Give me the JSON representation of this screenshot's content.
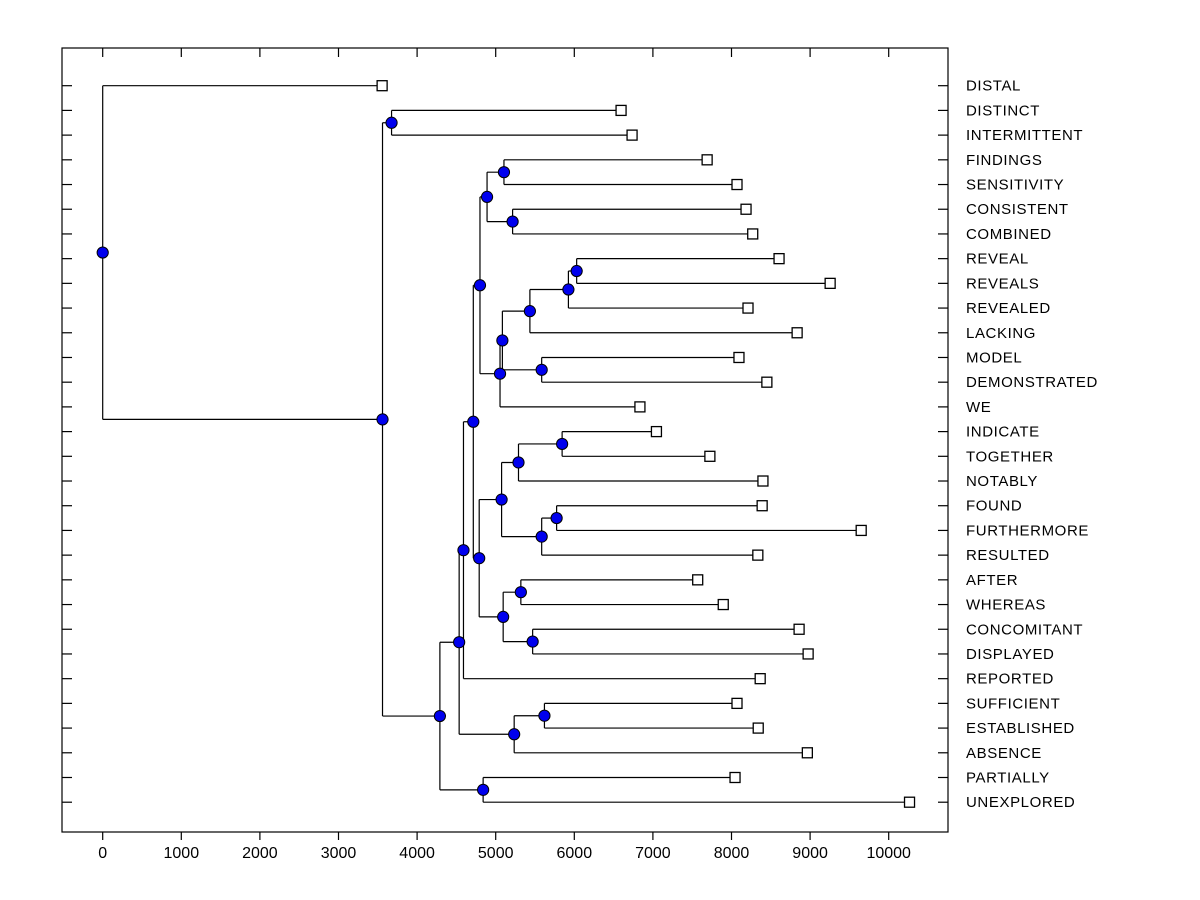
{
  "figure": {
    "background": "#ffffff",
    "plot_background": "#ffffff",
    "border_color": "#000000"
  },
  "chart_data": {
    "type": "dendrogram",
    "subtype": "phylogenetic-tree",
    "orientation": "horizontal-root-left",
    "title": "",
    "xlabel": "",
    "ylabel": "",
    "xlim": [
      -500,
      10750
    ],
    "grid": false,
    "legend": null,
    "x_ticks": [
      0,
      1000,
      2000,
      3000,
      4000,
      5000,
      6000,
      7000,
      8000,
      9000,
      10000
    ],
    "x_tick_labels": [
      "0",
      "1000",
      "2000",
      "3000",
      "4000",
      "5000",
      "6000",
      "7000",
      "8000",
      "9000",
      "10000"
    ],
    "leaf_labels": [
      "DISTAL",
      "DISTINCT",
      "INTERMITTENT",
      "FINDINGS",
      "SENSITIVITY",
      "CONSISTENT",
      "COMBINED",
      "REVEAL",
      "REVEALS",
      "REVEALED",
      "LACKING",
      "MODEL",
      "DEMONSTRATED",
      "WE",
      "INDICATE",
      "TOGETHER",
      "NOTABLY",
      "FOUND",
      "FURTHERMORE",
      "RESULTED",
      "AFTER",
      "WHEREAS",
      "CONCOMITANT",
      "DISPLAYED",
      "REPORTED",
      "SUFFICIENT",
      "ESTABLISHED",
      "ABSENCE",
      "PARTIALLY",
      "UNEXPLORED"
    ],
    "tree": {
      "x": 0,
      "children": [
        {
          "leaf": "DISTAL",
          "x": 3555
        },
        {
          "x": 3560,
          "children": [
            {
              "x": 3675,
              "children": [
                {
                  "leaf": "DISTINCT",
                  "x": 6595
                },
                {
                  "leaf": "INTERMITTENT",
                  "x": 6735
                }
              ]
            },
            {
              "x": 4290,
              "children": [
                {
                  "x": 4535,
                  "children": [
                    {
                      "x": 4590,
                      "children": [
                        {
                          "x": 4715,
                          "children": [
                            {
                              "x": 4800,
                              "children": [
                                {
                                  "x": 4890,
                                  "children": [
                                    {
                                      "x": 5105,
                                      "children": [
                                        {
                                          "leaf": "FINDINGS",
                                          "x": 7690
                                        },
                                        {
                                          "leaf": "SENSITIVITY",
                                          "x": 8070
                                        }
                                      ]
                                    },
                                    {
                                      "x": 5215,
                                      "children": [
                                        {
                                          "leaf": "CONSISTENT",
                                          "x": 8185
                                        },
                                        {
                                          "leaf": "COMBINED",
                                          "x": 8270
                                        }
                                      ]
                                    }
                                  ]
                                },
                                {
                                  "x": 5055,
                                  "children": [
                                    {
                                      "x": 5085,
                                      "children": [
                                        {
                                          "x": 5435,
                                          "children": [
                                            {
                                              "x": 5925,
                                              "children": [
                                                {
                                                  "x": 6030,
                                                  "children": [
                                                    {
                                                      "leaf": "REVEAL",
                                                      "x": 8605
                                                    },
                                                    {
                                                      "leaf": "REVEALS",
                                                      "x": 9255
                                                    }
                                                  ]
                                                },
                                                {
                                                  "leaf": "REVEALED",
                                                  "x": 8210
                                                }
                                              ]
                                            },
                                            {
                                              "leaf": "LACKING",
                                              "x": 8835
                                            }
                                          ]
                                        },
                                        {
                                          "x": 5585,
                                          "children": [
                                            {
                                              "leaf": "MODEL",
                                              "x": 8095
                                            },
                                            {
                                              "leaf": "DEMONSTRATED",
                                              "x": 8450
                                            }
                                          ]
                                        }
                                      ]
                                    },
                                    {
                                      "leaf": "WE",
                                      "x": 6835
                                    }
                                  ]
                                }
                              ]
                            },
                            {
                              "x": 4790,
                              "children": [
                                {
                                  "x": 5075,
                                  "children": [
                                    {
                                      "x": 5290,
                                      "children": [
                                        {
                                          "x": 5845,
                                          "children": [
                                            {
                                              "leaf": "INDICATE",
                                              "x": 7045
                                            },
                                            {
                                              "leaf": "TOGETHER",
                                              "x": 7725
                                            }
                                          ]
                                        },
                                        {
                                          "leaf": "NOTABLY",
                                          "x": 8400
                                        }
                                      ]
                                    },
                                    {
                                      "x": 5585,
                                      "children": [
                                        {
                                          "x": 5775,
                                          "children": [
                                            {
                                              "leaf": "FOUND",
                                              "x": 8390
                                            },
                                            {
                                              "leaf": "FURTHERMORE",
                                              "x": 9650
                                            }
                                          ]
                                        },
                                        {
                                          "leaf": "RESULTED",
                                          "x": 8335
                                        }
                                      ]
                                    }
                                  ]
                                },
                                {
                                  "x": 5095,
                                  "children": [
                                    {
                                      "x": 5320,
                                      "children": [
                                        {
                                          "leaf": "AFTER",
                                          "x": 7570
                                        },
                                        {
                                          "leaf": "WHEREAS",
                                          "x": 7895
                                        }
                                      ]
                                    },
                                    {
                                      "x": 5470,
                                      "children": [
                                        {
                                          "leaf": "CONCOMITANT",
                                          "x": 8860
                                        },
                                        {
                                          "leaf": "DISPLAYED",
                                          "x": 8975
                                        }
                                      ]
                                    }
                                  ]
                                }
                              ]
                            }
                          ]
                        },
                        {
                          "leaf": "REPORTED",
                          "x": 8365
                        }
                      ]
                    },
                    {
                      "x": 5235,
                      "children": [
                        {
                          "x": 5620,
                          "children": [
                            {
                              "leaf": "SUFFICIENT",
                              "x": 8070
                            },
                            {
                              "leaf": "ESTABLISHED",
                              "x": 8340
                            }
                          ]
                        },
                        {
                          "leaf": "ABSENCE",
                          "x": 8965
                        }
                      ]
                    }
                  ]
                },
                {
                  "x": 4840,
                  "children": [
                    {
                      "leaf": "PARTIALLY",
                      "x": 8045
                    },
                    {
                      "leaf": "UNEXPLORED",
                      "x": 10265
                    }
                  ]
                }
              ]
            }
          ]
        }
      ]
    },
    "style": {
      "branch_color": "#000000",
      "internal_node_color": "#0000EE",
      "internal_node_edge": "#000000",
      "leaf_marker_fill": "#ffffff",
      "leaf_marker_edge": "#000000"
    }
  }
}
